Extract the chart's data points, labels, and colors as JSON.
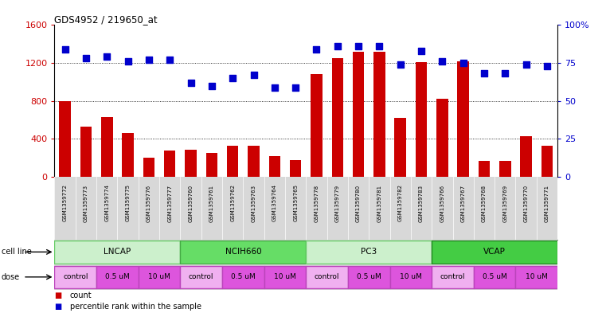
{
  "title": "GDS4952 / 219650_at",
  "samples": [
    "GSM1359772",
    "GSM1359773",
    "GSM1359774",
    "GSM1359775",
    "GSM1359776",
    "GSM1359777",
    "GSM1359760",
    "GSM1359761",
    "GSM1359762",
    "GSM1359763",
    "GSM1359764",
    "GSM1359765",
    "GSM1359778",
    "GSM1359779",
    "GSM1359780",
    "GSM1359781",
    "GSM1359782",
    "GSM1359783",
    "GSM1359766",
    "GSM1359767",
    "GSM1359768",
    "GSM1359769",
    "GSM1359770",
    "GSM1359771"
  ],
  "counts": [
    800,
    530,
    630,
    460,
    200,
    280,
    285,
    250,
    330,
    330,
    220,
    175,
    1080,
    1250,
    1320,
    1320,
    620,
    1210,
    820,
    1220,
    170,
    170,
    430,
    330
  ],
  "percentile_ranks": [
    84,
    78,
    79,
    76,
    77,
    77,
    62,
    60,
    65,
    67,
    59,
    59,
    84,
    86,
    86,
    86,
    74,
    83,
    76,
    75,
    68,
    68,
    74,
    73
  ],
  "bar_color": "#cc0000",
  "dot_color": "#0000cc",
  "ylim_left": [
    0,
    1600
  ],
  "ylim_right": [
    0,
    100
  ],
  "yticks_left": [
    0,
    400,
    800,
    1200,
    1600
  ],
  "yticks_right": [
    0,
    25,
    50,
    75,
    100
  ],
  "grid_values": [
    400,
    800,
    1200
  ],
  "bar_width": 0.55,
  "dot_size": 40,
  "bg_color": "#ffffff",
  "cell_line_rows": [
    {
      "name": "LNCAP",
      "start": 0,
      "end": 6,
      "bg": "#ccf0cc",
      "border": "#66cc66"
    },
    {
      "name": "NCIH660",
      "start": 6,
      "end": 12,
      "bg": "#66dd66",
      "border": "#44aa44"
    },
    {
      "name": "PC3",
      "start": 12,
      "end": 18,
      "bg": "#ccf0cc",
      "border": "#66cc66"
    },
    {
      "name": "VCAP",
      "start": 18,
      "end": 24,
      "bg": "#44cc44",
      "border": "#228822"
    }
  ],
  "dose_groups": [
    {
      "label": "control",
      "start": 0,
      "end": 2,
      "color": "#f0b0f0"
    },
    {
      "label": "0.5 uM",
      "start": 2,
      "end": 4,
      "color": "#dd55dd"
    },
    {
      "label": "10 uM",
      "start": 4,
      "end": 6,
      "color": "#dd55dd"
    },
    {
      "label": "control",
      "start": 6,
      "end": 8,
      "color": "#f0b0f0"
    },
    {
      "label": "0.5 uM",
      "start": 8,
      "end": 10,
      "color": "#dd55dd"
    },
    {
      "label": "10 uM",
      "start": 10,
      "end": 12,
      "color": "#dd55dd"
    },
    {
      "label": "control",
      "start": 12,
      "end": 14,
      "color": "#f0b0f0"
    },
    {
      "label": "0.5 uM",
      "start": 14,
      "end": 16,
      "color": "#dd55dd"
    },
    {
      "label": "10 uM",
      "start": 16,
      "end": 18,
      "color": "#dd55dd"
    },
    {
      "label": "control",
      "start": 18,
      "end": 20,
      "color": "#f0b0f0"
    },
    {
      "label": "0.5 uM",
      "start": 20,
      "end": 22,
      "color": "#dd55dd"
    },
    {
      "label": "10 uM",
      "start": 22,
      "end": 24,
      "color": "#dd55dd"
    }
  ]
}
